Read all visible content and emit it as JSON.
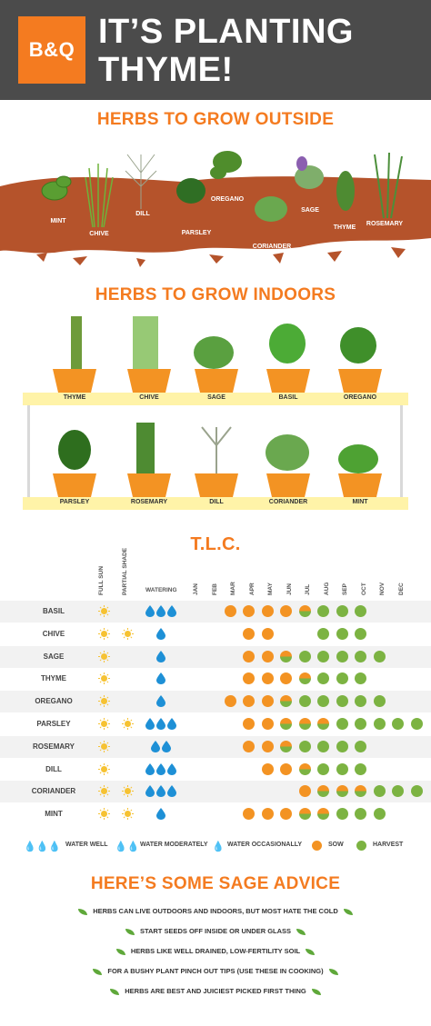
{
  "header": {
    "logo": "B&Q",
    "title_line1": "IT’S PLANTING",
    "title_line2": "THYME!"
  },
  "outside": {
    "title": "HERBS TO GROW OUTSIDE",
    "herbs": [
      "MINT",
      "CHIVE",
      "DILL",
      "PARSLEY",
      "OREGANO",
      "CORIANDER",
      "SAGE",
      "THYME",
      "ROSEMARY"
    ]
  },
  "indoors": {
    "title": "HERBS TO GROW INDOORS",
    "shelf1": [
      "THYME",
      "CHIVE",
      "SAGE",
      "BASIL",
      "OREGANO"
    ],
    "shelf2": [
      "PARSLEY",
      "ROSEMARY",
      "DILL",
      "CORIANDER",
      "MINT"
    ]
  },
  "tlc": {
    "title": "T.L.C.",
    "columns": {
      "full_sun": "FULL SUN",
      "partial_shade": "PARTIAL SHADE",
      "watering": "WATERING",
      "months": [
        "JAN",
        "FEB",
        "MAR",
        "APR",
        "MAY",
        "JUN",
        "JUL",
        "AUG",
        "SEP",
        "OCT",
        "NOV",
        "DEC"
      ]
    },
    "rows": [
      {
        "name": "BASIL",
        "sun": true,
        "shade": false,
        "water": 3,
        "months": [
          "",
          "s",
          "s",
          "s",
          "s",
          "b",
          "h",
          "h",
          "h",
          "",
          "",
          ""
        ]
      },
      {
        "name": "CHIVE",
        "sun": true,
        "shade": true,
        "water": 1,
        "months": [
          "",
          "",
          "s",
          "s",
          "",
          "",
          "h",
          "h",
          "h",
          "",
          "",
          ""
        ]
      },
      {
        "name": "SAGE",
        "sun": true,
        "shade": false,
        "water": 1,
        "months": [
          "",
          "",
          "s",
          "s",
          "b",
          "h",
          "h",
          "h",
          "h",
          "h",
          "",
          ""
        ]
      },
      {
        "name": "THYME",
        "sun": true,
        "shade": false,
        "water": 1,
        "months": [
          "",
          "",
          "s",
          "s",
          "s",
          "b",
          "h",
          "h",
          "h",
          "",
          "",
          ""
        ]
      },
      {
        "name": "OREGANO",
        "sun": true,
        "shade": false,
        "water": 1,
        "months": [
          "",
          "s",
          "s",
          "s",
          "b",
          "h",
          "h",
          "h",
          "h",
          "h",
          "",
          ""
        ]
      },
      {
        "name": "PARSLEY",
        "sun": true,
        "shade": true,
        "water": 3,
        "months": [
          "",
          "",
          "s",
          "s",
          "b",
          "b",
          "b",
          "h",
          "h",
          "h",
          "h",
          "h"
        ]
      },
      {
        "name": "ROSEMARY",
        "sun": true,
        "shade": false,
        "water": 2,
        "months": [
          "",
          "",
          "s",
          "s",
          "b",
          "h",
          "h",
          "h",
          "h",
          "",
          "",
          ""
        ]
      },
      {
        "name": "DILL",
        "sun": true,
        "shade": false,
        "water": 3,
        "months": [
          "",
          "",
          "",
          "s",
          "s",
          "b",
          "h",
          "h",
          "h",
          "",
          "",
          ""
        ]
      },
      {
        "name": "CORIANDER",
        "sun": true,
        "shade": true,
        "water": 3,
        "months": [
          "",
          "",
          "",
          "",
          "",
          "s",
          "b",
          "b",
          "b",
          "h",
          "h",
          "h"
        ]
      },
      {
        "name": "MINT",
        "sun": true,
        "shade": true,
        "water": 1,
        "months": [
          "",
          "",
          "s",
          "s",
          "s",
          "b",
          "b",
          "h",
          "h",
          "h",
          "",
          ""
        ]
      }
    ],
    "legend": {
      "water_well": "WATER WELL",
      "water_moderately": "WATER MODERATELY",
      "water_occasionally": "WATER OCCASIONALLY",
      "sow": "SOW",
      "harvest": "HARVEST"
    }
  },
  "advice": {
    "title": "HERE’S SOME SAGE ADVICE",
    "tips": [
      "HERBS CAN LIVE OUTDOORS AND INDOORS, BUT MOST HATE THE COLD",
      "START SEEDS OFF INSIDE OR UNDER GLASS",
      "HERBS LIKE WELL DRAINED, LOW-FERTILITY SOIL",
      "FOR A BUSHY PLANT PINCH OUT TIPS (USE THESE IN COOKING)",
      "HERBS ARE BEST AND JUICIEST PICKED FIRST THING"
    ]
  },
  "colors": {
    "brand": "#f47b20",
    "header_bg": "#4b4b4b",
    "soil": "#b5532b",
    "pot": "#f39323",
    "shelf": "#fff3a8",
    "sow": "#f39323",
    "harvest": "#7cb342",
    "water": "#1e90d6",
    "sun": "#f6c232"
  }
}
